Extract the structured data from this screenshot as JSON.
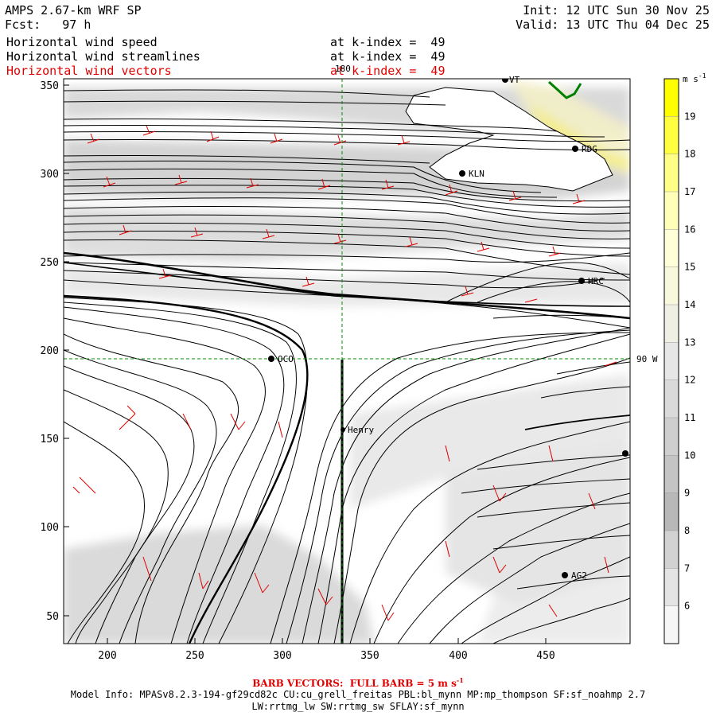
{
  "header": {
    "model": "AMPS 2.67-km WRF SP",
    "forecast": "Fcst:   97 h",
    "init": "Init: 12 UTC Sun 30 Nov 25",
    "valid": "Valid: 13 UTC Thu 04 Dec 25"
  },
  "fields": [
    {
      "name": "Horizontal wind speed",
      "level": "at k-index =  49",
      "color": "#000000"
    },
    {
      "name": "Horizontal wind streamlines",
      "level": "at k-index =  49",
      "color": "#000000"
    },
    {
      "name": "Horizontal wind vectors",
      "level": "at k-index =  49",
      "color": "#e00000"
    }
  ],
  "map": {
    "x_ticks": [
      "200",
      "250",
      "300",
      "350",
      "400",
      "450"
    ],
    "y_ticks": [
      "350",
      "300",
      "250",
      "200",
      "150",
      "100",
      "50"
    ],
    "meridian_label": "180",
    "parallel_label": "90 W",
    "stations": [
      {
        "name": "RDG"
      },
      {
        "name": "KLN"
      },
      {
        "name": "HRC"
      },
      {
        "name": "OCO"
      },
      {
        "name": "Henry"
      },
      {
        "name": "AG2"
      },
      {
        "name": "VT"
      }
    ]
  },
  "colorbar": {
    "unit_base": "m s",
    "unit_exp": "-1",
    "labels": [
      "19",
      "18",
      "17",
      "16",
      "15",
      "14",
      "13",
      "12",
      "11",
      "10",
      "9",
      "8",
      "7",
      "6"
    ],
    "colors": [
      "#ffff00",
      "#ffff40",
      "#ffff88",
      "#ffffb8",
      "#ffffd8",
      "#f8f8dc",
      "#efefe4",
      "#e6e6e6",
      "#dadada",
      "#cfcfcf",
      "#c4c4c4",
      "#b8b8b8",
      "#d2d2d2",
      "#e4e4e4",
      "#f6f6f6"
    ]
  },
  "footer": {
    "barb_prefix": "BARB VECTORS:  FULL BARB = 5 m s",
    "barb_exp": "-1",
    "model_info": "Model Info: MPASv8.2.3-194-gf29cd82c CU:cu_grell_freitas PBL:bl_mynn MP:mp_thompson SF:sf_noahmp 2.7",
    "physics": "LW:rrtmg_lw SW:rrtmg_sw SFLAY:sf_mynn"
  }
}
